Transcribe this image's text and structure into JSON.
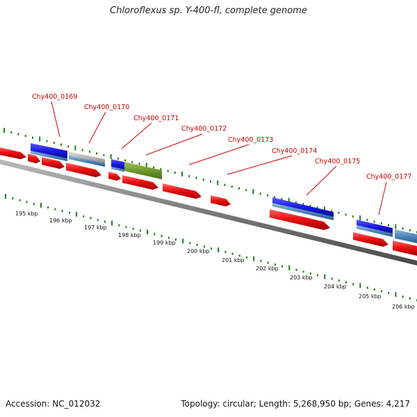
{
  "title": "Chloroflexus sp. Y-400-fl, complete genome",
  "footer": {
    "accession": "Accession: NC_012032",
    "summary": "Topology: circular; Length: 5,268,950 bp; Genes: 4,217"
  },
  "colors": {
    "cds": "#ee1111",
    "gene_label": "#cc0000",
    "blue_feature": "#1a1ae6",
    "steel_feature": "#4f86b8",
    "grey_feature": "#b8b8b8",
    "olive_feature": "#6f9a2a",
    "backbone": "#888888",
    "ticks": "#1f7a1f"
  },
  "gene_labels": [
    {
      "name": "Chy400_0169"
    },
    {
      "name": "Chy400_0170"
    },
    {
      "name": "Chy400_0171"
    },
    {
      "name": "Chy400_0172"
    },
    {
      "name": "Chy400_0173"
    },
    {
      "name": "Chy400_0174"
    },
    {
      "name": "Chy400_0175"
    },
    {
      "name": "Chy400_0177"
    }
  ],
  "scale_labels": [
    "195 kbp",
    "196 kbp",
    "197 kbp",
    "198 kbp",
    "199 kbp",
    "200 kbp",
    "201 kbp",
    "202 kbp",
    "203 kbp",
    "204 kbp",
    "205 kbp",
    "206 kbp"
  ]
}
